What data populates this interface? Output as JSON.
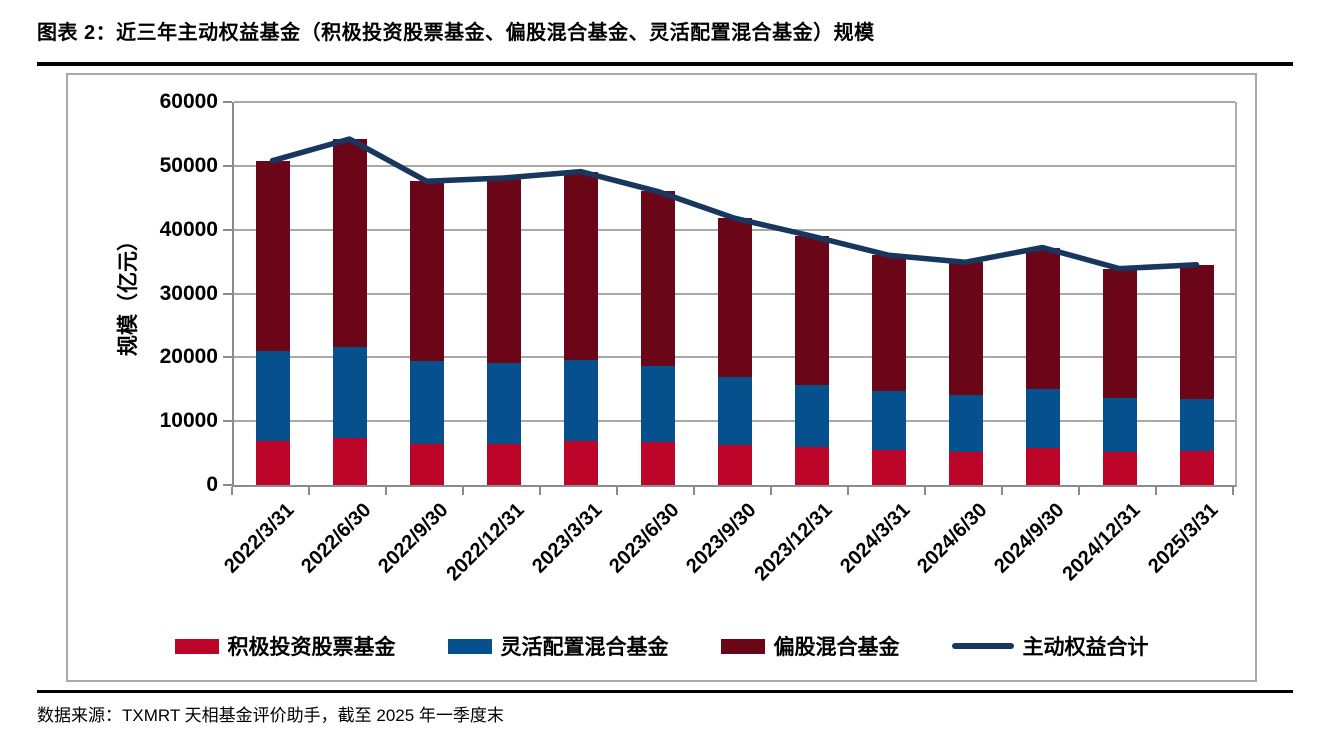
{
  "page": {
    "title": "图表 2：近三年主动权益基金（积极投资股票基金、偏股混合基金、灵活配置混合基金）规模",
    "source": "数据来源：TXMRT 天相基金评价助手，截至 2025 年一季度末"
  },
  "chart_data": {
    "type": "bar",
    "stacked": true,
    "title": "",
    "xlabel": "",
    "ylabel": "规模（亿元）",
    "ylim": [
      0,
      60000
    ],
    "yticks": [
      0,
      10000,
      20000,
      30000,
      40000,
      50000,
      60000
    ],
    "grid": true,
    "legend_position": "bottom",
    "categories": [
      "2022/3/31",
      "2022/6/30",
      "2022/9/30",
      "2022/12/31",
      "2023/3/31",
      "2023/6/30",
      "2023/9/30",
      "2023/12/31",
      "2024/3/31",
      "2024/6/30",
      "2024/9/30",
      "2024/12/31",
      "2025/3/31"
    ],
    "series": [
      {
        "name": "积极投资股票基金",
        "type": "bar",
        "color": "#BD0429",
        "values": [
          6900,
          7300,
          6400,
          6500,
          6900,
          6700,
          6300,
          5900,
          5500,
          5200,
          5800,
          5100,
          5300
        ]
      },
      {
        "name": "灵活配置混合基金",
        "type": "bar",
        "color": "#06508E",
        "values": [
          14100,
          14300,
          13000,
          12600,
          12700,
          11900,
          10700,
          9800,
          9200,
          8900,
          9200,
          8500,
          8200
        ]
      },
      {
        "name": "偏股混合基金",
        "type": "bar",
        "color": "#6B0618",
        "values": [
          29800,
          32600,
          28200,
          29000,
          29500,
          27400,
          24800,
          23300,
          21300,
          20800,
          22200,
          20300,
          21000
        ]
      },
      {
        "name": "主动权益合计",
        "type": "line",
        "color": "#17375E",
        "values": [
          50800,
          54200,
          47600,
          48100,
          49100,
          46000,
          41800,
          39000,
          36000,
          34900,
          37200,
          33900,
          34500
        ]
      }
    ]
  }
}
